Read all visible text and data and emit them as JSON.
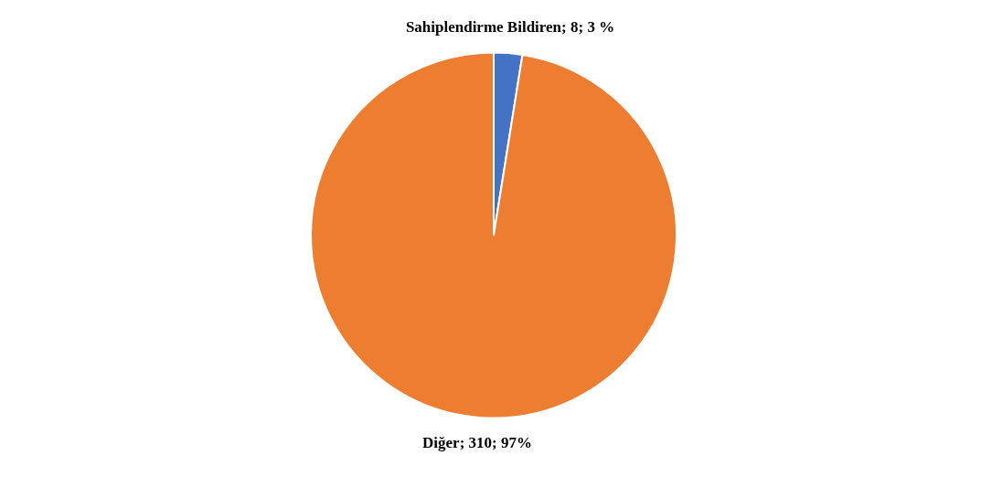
{
  "chart_data": {
    "type": "pie",
    "categories": [
      "Sahiplendirme Bildiren",
      "Diğer"
    ],
    "values": [
      8,
      310
    ],
    "colors": [
      "#4472c4",
      "#ed7d31"
    ],
    "value_labels": [
      "8; 3 %",
      "310; 97%"
    ],
    "legend": false
  }
}
